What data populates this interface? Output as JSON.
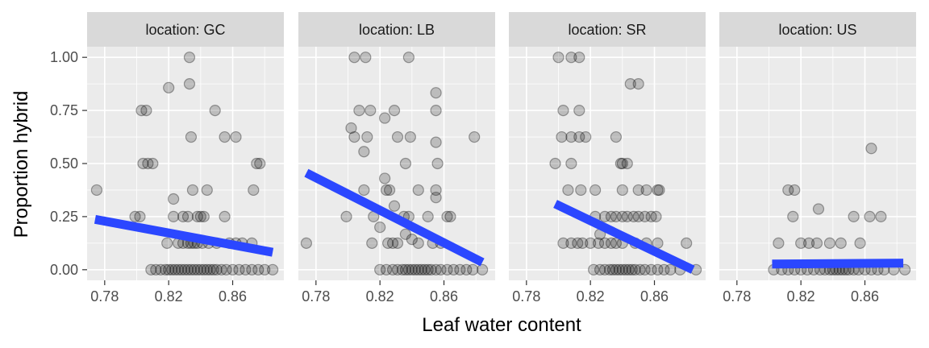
{
  "chart_data": {
    "type": "scatter",
    "xlabel": "Leaf water content",
    "ylabel": "Proportion hybrid",
    "xlim": [
      0.769,
      0.892
    ],
    "ylim": [
      -0.05,
      1.05
    ],
    "x_ticks": [
      0.78,
      0.82,
      0.86
    ],
    "x_tick_labels": [
      "0.78",
      "0.82",
      "0.86"
    ],
    "y_ticks": [
      0,
      0.25,
      0.5,
      0.75,
      1
    ],
    "y_tick_labels": [
      "0.00",
      "0.25",
      "0.50",
      "0.75",
      "1.00"
    ],
    "grid": true,
    "colors": {
      "points": "#000000",
      "trend": "#2b47ff",
      "panel": "#ebebeb",
      "strip": "#d9d9d9"
    },
    "panels": [
      {
        "label": "location: GC",
        "trend": {
          "x": [
            0.774,
            0.885
          ],
          "y": [
            0.237,
            0.082
          ]
        },
        "points": [
          [
            0.775,
            0.375
          ],
          [
            0.799,
            0.25
          ],
          [
            0.802,
            0.25
          ],
          [
            0.803,
            0.75
          ],
          [
            0.806,
            0.75
          ],
          [
            0.804,
            0.5
          ],
          [
            0.807,
            0.5
          ],
          [
            0.81,
            0.5
          ],
          [
            0.82,
            0.857
          ],
          [
            0.823,
            0.333
          ],
          [
            0.833,
            1.0
          ],
          [
            0.833,
            0.875
          ],
          [
            0.834,
            0.625
          ],
          [
            0.849,
            0.75
          ],
          [
            0.855,
            0.625
          ],
          [
            0.862,
            0.625
          ],
          [
            0.873,
            0.375
          ],
          [
            0.875,
            0.5
          ],
          [
            0.877,
            0.5
          ],
          [
            0.823,
            0.25
          ],
          [
            0.829,
            0.25
          ],
          [
            0.832,
            0.25
          ],
          [
            0.835,
            0.375
          ],
          [
            0.838,
            0.25
          ],
          [
            0.842,
            0.25
          ],
          [
            0.844,
            0.375
          ],
          [
            0.855,
            0.25
          ],
          [
            0.84,
            0.25
          ],
          [
            0.819,
            0.125
          ],
          [
            0.826,
            0.125
          ],
          [
            0.829,
            0.125
          ],
          [
            0.832,
            0.125
          ],
          [
            0.834,
            0.125
          ],
          [
            0.836,
            0.125
          ],
          [
            0.838,
            0.125
          ],
          [
            0.841,
            0.125
          ],
          [
            0.845,
            0.125
          ],
          [
            0.85,
            0.125
          ],
          [
            0.858,
            0.125
          ],
          [
            0.862,
            0.125
          ],
          [
            0.866,
            0.125
          ],
          [
            0.872,
            0.125
          ],
          [
            0.809,
            0.0
          ],
          [
            0.812,
            0.0
          ],
          [
            0.815,
            0.0
          ],
          [
            0.818,
            0.0
          ],
          [
            0.82,
            0.0
          ],
          [
            0.822,
            0.0
          ],
          [
            0.824,
            0.0
          ],
          [
            0.826,
            0.0
          ],
          [
            0.828,
            0.0
          ],
          [
            0.83,
            0.0
          ],
          [
            0.832,
            0.0
          ],
          [
            0.834,
            0.0
          ],
          [
            0.836,
            0.0
          ],
          [
            0.838,
            0.0
          ],
          [
            0.84,
            0.0
          ],
          [
            0.842,
            0.0
          ],
          [
            0.844,
            0.0
          ],
          [
            0.846,
            0.0
          ],
          [
            0.848,
            0.0
          ],
          [
            0.85,
            0.0
          ],
          [
            0.853,
            0.0
          ],
          [
            0.856,
            0.0
          ],
          [
            0.86,
            0.0
          ],
          [
            0.864,
            0.0
          ],
          [
            0.868,
            0.0
          ],
          [
            0.872,
            0.0
          ],
          [
            0.876,
            0.0
          ],
          [
            0.88,
            0.0
          ],
          [
            0.885,
            0.0
          ]
        ]
      },
      {
        "label": "location: LB",
        "trend": {
          "x": [
            0.774,
            0.884
          ],
          "y": [
            0.456,
            0.035
          ]
        },
        "points": [
          [
            0.774,
            0.125
          ],
          [
            0.799,
            0.25
          ],
          [
            0.802,
            0.667
          ],
          [
            0.804,
            0.625
          ],
          [
            0.804,
            1.0
          ],
          [
            0.811,
            1.0
          ],
          [
            0.838,
            1.0
          ],
          [
            0.807,
            0.75
          ],
          [
            0.81,
            0.556
          ],
          [
            0.812,
            0.625
          ],
          [
            0.814,
            0.75
          ],
          [
            0.823,
            0.714
          ],
          [
            0.829,
            0.75
          ],
          [
            0.831,
            0.625
          ],
          [
            0.836,
            0.5
          ],
          [
            0.839,
            0.625
          ],
          [
            0.855,
            0.833
          ],
          [
            0.855,
            0.75
          ],
          [
            0.855,
            0.6
          ],
          [
            0.856,
            0.5
          ],
          [
            0.879,
            0.625
          ],
          [
            0.81,
            0.375
          ],
          [
            0.823,
            0.43
          ],
          [
            0.824,
            0.375
          ],
          [
            0.826,
            0.375
          ],
          [
            0.829,
            0.3
          ],
          [
            0.835,
            0.25
          ],
          [
            0.838,
            0.25
          ],
          [
            0.844,
            0.375
          ],
          [
            0.85,
            0.25
          ],
          [
            0.855,
            0.34
          ],
          [
            0.855,
            0.375
          ],
          [
            0.862,
            0.25
          ],
          [
            0.864,
            0.25
          ],
          [
            0.816,
            0.25
          ],
          [
            0.82,
            0.2
          ],
          [
            0.825,
            0.125
          ],
          [
            0.828,
            0.125
          ],
          [
            0.831,
            0.125
          ],
          [
            0.836,
            0.167
          ],
          [
            0.84,
            0.143
          ],
          [
            0.844,
            0.125
          ],
          [
            0.853,
            0.125
          ],
          [
            0.858,
            0.125
          ],
          [
            0.815,
            0.125
          ],
          [
            0.82,
            0.0
          ],
          [
            0.824,
            0.0
          ],
          [
            0.828,
            0.0
          ],
          [
            0.831,
            0.0
          ],
          [
            0.834,
            0.0
          ],
          [
            0.836,
            0.0
          ],
          [
            0.838,
            0.0
          ],
          [
            0.84,
            0.0
          ],
          [
            0.842,
            0.0
          ],
          [
            0.844,
            0.0
          ],
          [
            0.846,
            0.0
          ],
          [
            0.848,
            0.0
          ],
          [
            0.85,
            0.0
          ],
          [
            0.852,
            0.0
          ],
          [
            0.855,
            0.0
          ],
          [
            0.858,
            0.0
          ],
          [
            0.862,
            0.0
          ],
          [
            0.866,
            0.0
          ],
          [
            0.87,
            0.0
          ],
          [
            0.874,
            0.0
          ],
          [
            0.878,
            0.0
          ],
          [
            0.884,
            0.0
          ]
        ]
      },
      {
        "label": "location: SR",
        "trend": {
          "x": [
            0.798,
            0.884
          ],
          "y": [
            0.31,
            0.0
          ]
        },
        "points": [
          [
            0.798,
            0.5
          ],
          [
            0.8,
            1.0
          ],
          [
            0.802,
            0.625
          ],
          [
            0.803,
            0.75
          ],
          [
            0.806,
            0.375
          ],
          [
            0.808,
            1.0
          ],
          [
            0.808,
            0.625
          ],
          [
            0.808,
            0.5
          ],
          [
            0.813,
            1.0
          ],
          [
            0.813,
            0.75
          ],
          [
            0.813,
            0.625
          ],
          [
            0.817,
            0.625
          ],
          [
            0.836,
            0.625
          ],
          [
            0.839,
            0.5
          ],
          [
            0.84,
            0.5
          ],
          [
            0.843,
            0.5
          ],
          [
            0.845,
            0.875
          ],
          [
            0.85,
            0.875
          ],
          [
            0.814,
            0.375
          ],
          [
            0.823,
            0.375
          ],
          [
            0.84,
            0.375
          ],
          [
            0.85,
            0.375
          ],
          [
            0.855,
            0.375
          ],
          [
            0.862,
            0.375
          ],
          [
            0.863,
            0.375
          ],
          [
            0.843,
            0.25
          ],
          [
            0.847,
            0.25
          ],
          [
            0.85,
            0.25
          ],
          [
            0.854,
            0.25
          ],
          [
            0.823,
            0.25
          ],
          [
            0.829,
            0.25
          ],
          [
            0.833,
            0.25
          ],
          [
            0.836,
            0.25
          ],
          [
            0.84,
            0.25
          ],
          [
            0.858,
            0.25
          ],
          [
            0.861,
            0.25
          ],
          [
            0.803,
            0.125
          ],
          [
            0.808,
            0.125
          ],
          [
            0.812,
            0.125
          ],
          [
            0.815,
            0.125
          ],
          [
            0.82,
            0.125
          ],
          [
            0.825,
            0.125
          ],
          [
            0.829,
            0.125
          ],
          [
            0.833,
            0.125
          ],
          [
            0.836,
            0.125
          ],
          [
            0.84,
            0.125
          ],
          [
            0.848,
            0.125
          ],
          [
            0.855,
            0.125
          ],
          [
            0.862,
            0.125
          ],
          [
            0.88,
            0.125
          ],
          [
            0.826,
            0.167
          ],
          [
            0.822,
            0.0
          ],
          [
            0.826,
            0.0
          ],
          [
            0.829,
            0.0
          ],
          [
            0.832,
            0.0
          ],
          [
            0.834,
            0.0
          ],
          [
            0.836,
            0.0
          ],
          [
            0.838,
            0.0
          ],
          [
            0.84,
            0.0
          ],
          [
            0.842,
            0.0
          ],
          [
            0.844,
            0.0
          ],
          [
            0.846,
            0.0
          ],
          [
            0.848,
            0.0
          ],
          [
            0.851,
            0.0
          ],
          [
            0.854,
            0.0
          ],
          [
            0.858,
            0.0
          ],
          [
            0.862,
            0.0
          ],
          [
            0.866,
            0.0
          ],
          [
            0.87,
            0.0
          ],
          [
            0.876,
            0.0
          ],
          [
            0.886,
            0.0
          ]
        ]
      },
      {
        "label": "location: US",
        "trend": {
          "x": [
            0.802,
            0.884
          ],
          "y": [
            0.027,
            0.031
          ]
        },
        "points": [
          [
            0.803,
            0.0
          ],
          [
            0.806,
            0.125
          ],
          [
            0.815,
            0.25
          ],
          [
            0.816,
            0.375
          ],
          [
            0.812,
            0.375
          ],
          [
            0.831,
            0.286
          ],
          [
            0.853,
            0.25
          ],
          [
            0.863,
            0.25
          ],
          [
            0.864,
            0.571
          ],
          [
            0.87,
            0.25
          ],
          [
            0.82,
            0.125
          ],
          [
            0.825,
            0.125
          ],
          [
            0.83,
            0.125
          ],
          [
            0.838,
            0.125
          ],
          [
            0.845,
            0.125
          ],
          [
            0.857,
            0.125
          ],
          [
            0.808,
            0.0
          ],
          [
            0.812,
            0.0
          ],
          [
            0.816,
            0.0
          ],
          [
            0.82,
            0.0
          ],
          [
            0.824,
            0.0
          ],
          [
            0.828,
            0.0
          ],
          [
            0.832,
            0.0
          ],
          [
            0.835,
            0.0
          ],
          [
            0.838,
            0.0
          ],
          [
            0.84,
            0.0
          ],
          [
            0.842,
            0.0
          ],
          [
            0.844,
            0.0
          ],
          [
            0.846,
            0.0
          ],
          [
            0.848,
            0.0
          ],
          [
            0.85,
            0.0
          ],
          [
            0.853,
            0.0
          ],
          [
            0.856,
            0.0
          ],
          [
            0.86,
            0.0
          ],
          [
            0.864,
            0.0
          ],
          [
            0.868,
            0.0
          ],
          [
            0.872,
            0.0
          ],
          [
            0.878,
            0.0
          ],
          [
            0.885,
            0.0
          ]
        ]
      }
    ]
  }
}
